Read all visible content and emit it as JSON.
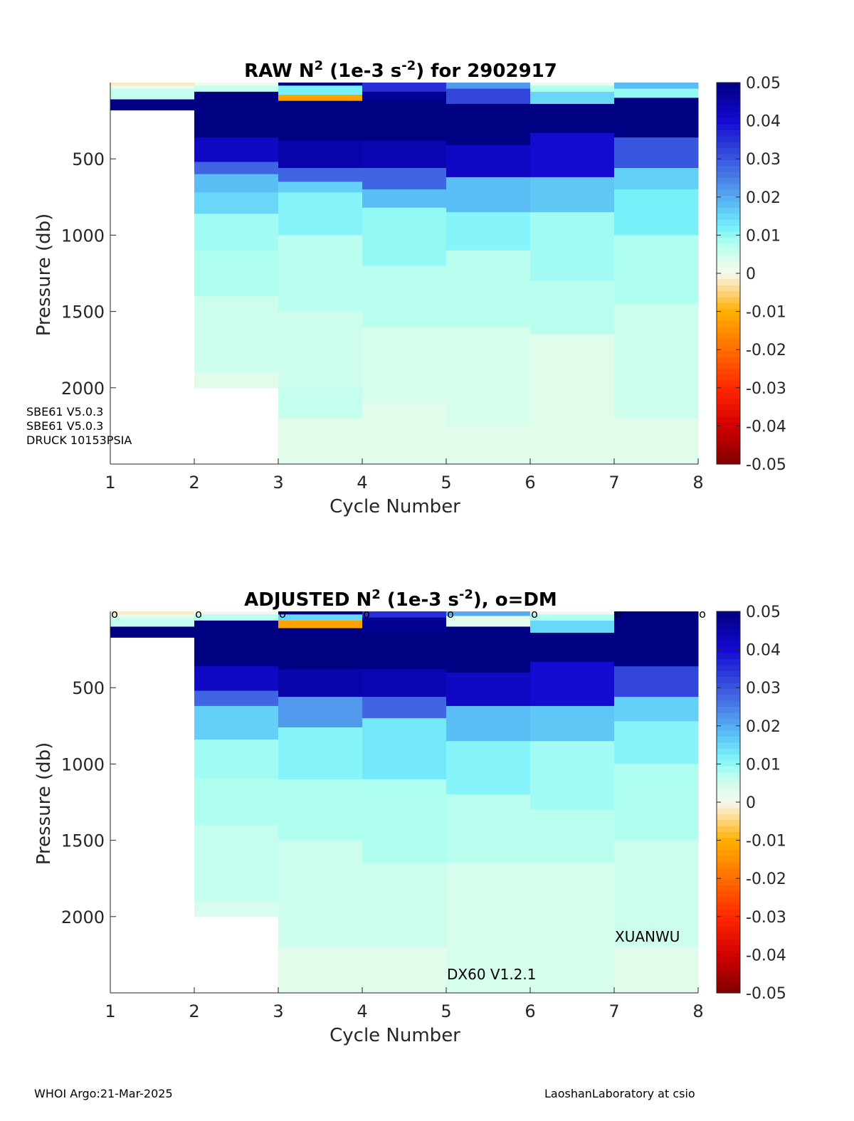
{
  "chart_data": [
    {
      "type": "heatmap",
      "title_parts": [
        "RAW N",
        "2",
        " (1e-3 s",
        "-2",
        ") for 2902917"
      ],
      "xlabel": "Cycle Number",
      "ylabel": "Pressure (db)",
      "x_ticks": [
        "1",
        "2",
        "3",
        "4",
        "5",
        "6",
        "7",
        "8"
      ],
      "y_ticks": [
        "500",
        "1000",
        "1500",
        "2000"
      ],
      "xlim": [
        1,
        8
      ],
      "ylim": [
        0,
        2500
      ],
      "y_reversed": true,
      "colorbar": {
        "ticks": [
          "0.05",
          "0.04",
          "0.03",
          "0.02",
          "0.01",
          "0",
          "-0.01",
          "-0.02",
          "-0.03",
          "-0.04",
          "-0.05"
        ],
        "range": [
          -0.05,
          0.05
        ]
      },
      "annotations": [
        "SBE61 V5.0.3",
        "SBE61 V5.0.3",
        "DRUCK 10153PSIA"
      ],
      "dm_flags": [],
      "columns": [
        {
          "cycle": 1,
          "max_pressure": 180,
          "layers": [
            [
              0,
              20,
              -0.002
            ],
            [
              20,
              40,
              0.002
            ],
            [
              40,
              110,
              0.006
            ],
            [
              110,
              180,
              0.05
            ]
          ]
        },
        {
          "cycle": 2,
          "max_pressure": 2000,
          "layers": [
            [
              0,
              20,
              0.0005
            ],
            [
              20,
              60,
              0.006
            ],
            [
              60,
              150,
              0.05
            ],
            [
              150,
              360,
              0.05
            ],
            [
              360,
              520,
              0.042
            ],
            [
              520,
              600,
              0.028
            ],
            [
              600,
              720,
              0.018
            ],
            [
              720,
              860,
              0.015
            ],
            [
              860,
              1100,
              0.009
            ],
            [
              1100,
              1400,
              0.008
            ],
            [
              1400,
              1900,
              0.005
            ],
            [
              1900,
              2000,
              0.003
            ]
          ]
        },
        {
          "cycle": 3,
          "max_pressure": 2500,
          "layers": [
            [
              0,
              20,
              0.05
            ],
            [
              20,
              80,
              0.012
            ],
            [
              80,
              120,
              -0.012
            ],
            [
              120,
              380,
              0.05
            ],
            [
              380,
              560,
              0.045
            ],
            [
              560,
              650,
              0.028
            ],
            [
              650,
              720,
              0.016
            ],
            [
              720,
              1000,
              0.011
            ],
            [
              1000,
              1500,
              0.007
            ],
            [
              1500,
              2000,
              0.005
            ],
            [
              2000,
              2200,
              0.006
            ],
            [
              2200,
              2500,
              0.003
            ]
          ]
        },
        {
          "cycle": 4,
          "max_pressure": 2500,
          "layers": [
            [
              0,
              60,
              0.035
            ],
            [
              60,
              120,
              0.048
            ],
            [
              120,
              380,
              0.05
            ],
            [
              380,
              560,
              0.044
            ],
            [
              560,
              700,
              0.028
            ],
            [
              700,
              820,
              0.018
            ],
            [
              820,
              1200,
              0.01
            ],
            [
              1200,
              1600,
              0.007
            ],
            [
              1600,
              2100,
              0.004
            ],
            [
              2100,
              2500,
              0.003
            ]
          ]
        },
        {
          "cycle": 5,
          "max_pressure": 2500,
          "layers": [
            [
              0,
              40,
              0.022
            ],
            [
              40,
              140,
              0.032
            ],
            [
              140,
              410,
              0.05
            ],
            [
              410,
              620,
              0.042
            ],
            [
              620,
              850,
              0.018
            ],
            [
              850,
              1100,
              0.011
            ],
            [
              1100,
              1600,
              0.007
            ],
            [
              1600,
              2250,
              0.004
            ],
            [
              2250,
              2500,
              0.003
            ]
          ]
        },
        {
          "cycle": 6,
          "max_pressure": 2500,
          "layers": [
            [
              0,
              20,
              0.001
            ],
            [
              20,
              60,
              0.008
            ],
            [
              60,
              140,
              0.015
            ],
            [
              140,
              330,
              0.05
            ],
            [
              330,
              620,
              0.04
            ],
            [
              620,
              850,
              0.017
            ],
            [
              850,
              1300,
              0.009
            ],
            [
              1300,
              1650,
              0.007
            ],
            [
              1650,
              2500,
              0.003
            ]
          ]
        },
        {
          "cycle": 7,
          "max_pressure": 2500,
          "layers": [
            [
              0,
              40,
              0.018
            ],
            [
              40,
              100,
              0.01
            ],
            [
              100,
              360,
              0.05
            ],
            [
              360,
              560,
              0.03
            ],
            [
              560,
              700,
              0.016
            ],
            [
              700,
              1000,
              0.012
            ],
            [
              1000,
              1450,
              0.008
            ],
            [
              1450,
              2200,
              0.005
            ],
            [
              2200,
              2500,
              0.003
            ]
          ]
        }
      ]
    },
    {
      "type": "heatmap",
      "title_parts": [
        "ADJUSTED N",
        "2",
        " (1e-3 s",
        "-2",
        "), o=DM"
      ],
      "xlabel": "Cycle Number",
      "ylabel": "Pressure (db)",
      "x_ticks": [
        "1",
        "2",
        "3",
        "4",
        "5",
        "6",
        "7",
        "8"
      ],
      "y_ticks": [
        "500",
        "1000",
        "1500",
        "2000"
      ],
      "xlim": [
        1,
        8
      ],
      "ylim": [
        0,
        2500
      ],
      "y_reversed": true,
      "colorbar": {
        "ticks": [
          "0.05",
          "0.04",
          "0.03",
          "0.02",
          "0.01",
          "0",
          "-0.01",
          "-0.02",
          "-0.03",
          "-0.04",
          "-0.05"
        ],
        "range": [
          -0.05,
          0.05
        ]
      },
      "annotations": [
        "XUANWU",
        "DX60 V1.2.1"
      ],
      "dm_flags": [
        "o",
        "o",
        "o",
        "o",
        "o",
        "o",
        "o",
        "o"
      ],
      "columns": [
        {
          "cycle": 1,
          "max_pressure": 170,
          "layers": [
            [
              0,
              20,
              -0.002
            ],
            [
              20,
              40,
              0.002
            ],
            [
              40,
              100,
              0.006
            ],
            [
              100,
              170,
              0.05
            ]
          ]
        },
        {
          "cycle": 2,
          "max_pressure": 2000,
          "layers": [
            [
              0,
              20,
              0.001
            ],
            [
              20,
              60,
              0.007
            ],
            [
              60,
              140,
              0.05
            ],
            [
              140,
              360,
              0.05
            ],
            [
              360,
              520,
              0.042
            ],
            [
              520,
              620,
              0.028
            ],
            [
              620,
              840,
              0.016
            ],
            [
              840,
              1100,
              0.009
            ],
            [
              1100,
              1400,
              0.008
            ],
            [
              1400,
              1900,
              0.006
            ],
            [
              1900,
              2000,
              0.004
            ]
          ]
        },
        {
          "cycle": 3,
          "max_pressure": 2500,
          "layers": [
            [
              0,
              20,
              0.05
            ],
            [
              20,
              60,
              0.015
            ],
            [
              60,
              110,
              -0.012
            ],
            [
              110,
              380,
              0.05
            ],
            [
              380,
              560,
              0.045
            ],
            [
              560,
              760,
              0.022
            ],
            [
              760,
              1100,
              0.011
            ],
            [
              1100,
              1500,
              0.008
            ],
            [
              1500,
              2200,
              0.005
            ],
            [
              2200,
              2500,
              0.003
            ]
          ]
        },
        {
          "cycle": 4,
          "max_pressure": 2500,
          "layers": [
            [
              0,
              40,
              0.035
            ],
            [
              40,
              140,
              0.048
            ],
            [
              140,
              380,
              0.05
            ],
            [
              380,
              560,
              0.044
            ],
            [
              560,
              700,
              0.028
            ],
            [
              700,
              1100,
              0.013
            ],
            [
              1100,
              1650,
              0.008
            ],
            [
              1650,
              2200,
              0.005
            ],
            [
              2200,
              2500,
              0.003
            ]
          ]
        },
        {
          "cycle": 5,
          "max_pressure": 2500,
          "layers": [
            [
              0,
              30,
              0.02
            ],
            [
              30,
              100,
              0.003
            ],
            [
              100,
              400,
              0.05
            ],
            [
              400,
              620,
              0.042
            ],
            [
              620,
              850,
              0.018
            ],
            [
              850,
              1200,
              0.011
            ],
            [
              1200,
              1650,
              0.007
            ],
            [
              1650,
              2500,
              0.004
            ]
          ]
        },
        {
          "cycle": 6,
          "max_pressure": 2500,
          "layers": [
            [
              0,
              20,
              0.001
            ],
            [
              20,
              60,
              0.008
            ],
            [
              60,
              140,
              0.015
            ],
            [
              140,
              330,
              0.05
            ],
            [
              330,
              620,
              0.04
            ],
            [
              620,
              850,
              0.017
            ],
            [
              850,
              1300,
              0.009
            ],
            [
              1300,
              1650,
              0.007
            ],
            [
              1650,
              2500,
              0.004
            ]
          ]
        },
        {
          "cycle": 7,
          "max_pressure": 2500,
          "layers": [
            [
              0,
              20,
              0.05
            ],
            [
              20,
              100,
              0.05
            ],
            [
              100,
              360,
              0.05
            ],
            [
              360,
              560,
              0.032
            ],
            [
              560,
              720,
              0.016
            ],
            [
              720,
              1000,
              0.011
            ],
            [
              1000,
              1500,
              0.008
            ],
            [
              1500,
              2200,
              0.005
            ],
            [
              2200,
              2500,
              0.003
            ]
          ]
        }
      ]
    }
  ],
  "footer": {
    "left": "WHOI Argo:21-Mar-2025",
    "right": "LaoshanLaboratory at csio"
  }
}
